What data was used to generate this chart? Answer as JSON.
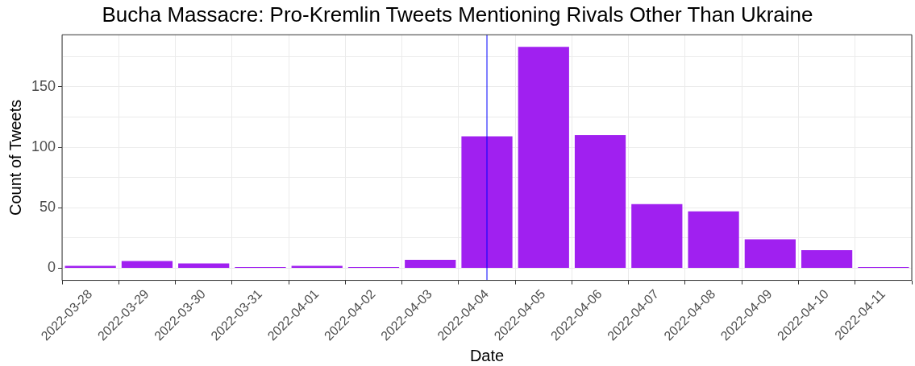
{
  "chart_data": {
    "type": "bar",
    "title": "Bucha Massacre: Pro-Kremlin Tweets Mentioning Rivals Other Than Ukraine",
    "xlabel": "Date",
    "ylabel": "Count of Tweets",
    "categories": [
      "2022-03-28",
      "2022-03-29",
      "2022-03-30",
      "2022-03-31",
      "2022-04-01",
      "2022-04-02",
      "2022-04-03",
      "2022-04-04",
      "2022-04-05",
      "2022-04-06",
      "2022-04-07",
      "2022-04-08",
      "2022-04-09",
      "2022-04-10",
      "2022-04-11"
    ],
    "values": [
      2,
      6,
      4,
      1,
      2,
      1,
      7,
      109,
      183,
      110,
      53,
      47,
      24,
      15,
      1
    ],
    "color": "#a020f0",
    "ylim": [
      -10,
      193
    ],
    "yticks": [
      0,
      {
        "value": 25,
        "label": null
      },
      50,
      {
        "value": 75,
        "label": null
      },
      100,
      {
        "value": 125,
        "label": null
      },
      150,
      {
        "value": 175,
        "label": null
      }
    ],
    "grid": true,
    "ref_lines": [
      {
        "axis": "x",
        "value": "2022-04-04",
        "color": "#0000ff"
      }
    ]
  }
}
